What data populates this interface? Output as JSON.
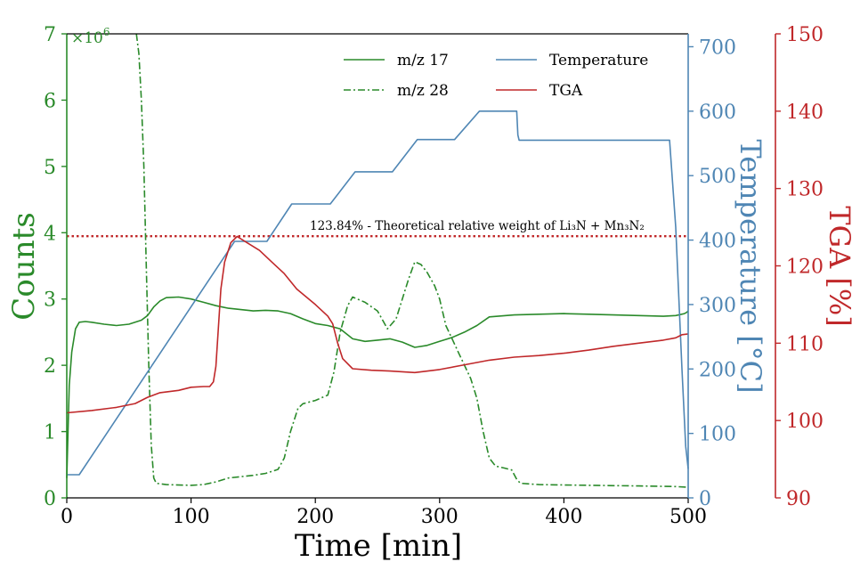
{
  "chart_data": {
    "type": "line",
    "xlabel": "Time [min]",
    "xlim": [
      0,
      500
    ],
    "x_ticks": [
      "0",
      "100",
      "200",
      "300",
      "400",
      "500"
    ],
    "left_axis": {
      "label": "Counts",
      "multiplier": "×10",
      "multiplier_exp": "6",
      "ylim": [
        0,
        7
      ],
      "ticks": [
        "0",
        "1",
        "2",
        "3",
        "4",
        "5",
        "6",
        "7"
      ],
      "color": "#2a8a2a"
    },
    "temp_axis": {
      "label": "Temperature [°C]",
      "ylim": [
        0,
        720
      ],
      "ticks": [
        "0",
        "100",
        "200",
        "300",
        "400",
        "500",
        "600",
        "700"
      ],
      "color": "#4f86b4"
    },
    "tga_axis": {
      "label": "TGA [%]",
      "ylim": [
        90,
        150
      ],
      "ticks": [
        "90",
        "100",
        "110",
        "120",
        "130",
        "140",
        "150"
      ],
      "color": "#c0282a"
    },
    "annotation": "123.84% - Theoretical relative weight of Li₃N + Mn₃N₂",
    "reference_line": {
      "axis": "tga",
      "value": 123.84,
      "style": "dotted",
      "color": "#c0282a"
    },
    "legend_position": "top-center",
    "series": [
      {
        "name": "m/z 17",
        "axis": "left",
        "color": "#2a8a2a",
        "style": "solid",
        "points": [
          [
            0,
            0.3
          ],
          [
            1,
            1.0
          ],
          [
            2,
            1.7
          ],
          [
            4,
            2.2
          ],
          [
            7,
            2.55
          ],
          [
            10,
            2.65
          ],
          [
            15,
            2.66
          ],
          [
            20,
            2.65
          ],
          [
            30,
            2.62
          ],
          [
            40,
            2.6
          ],
          [
            50,
            2.62
          ],
          [
            60,
            2.68
          ],
          [
            65,
            2.75
          ],
          [
            70,
            2.88
          ],
          [
            75,
            2.97
          ],
          [
            80,
            3.02
          ],
          [
            90,
            3.03
          ],
          [
            100,
            3.0
          ],
          [
            110,
            2.95
          ],
          [
            120,
            2.9
          ],
          [
            130,
            2.86
          ],
          [
            140,
            2.84
          ],
          [
            150,
            2.82
          ],
          [
            160,
            2.83
          ],
          [
            170,
            2.82
          ],
          [
            180,
            2.78
          ],
          [
            190,
            2.7
          ],
          [
            200,
            2.63
          ],
          [
            210,
            2.6
          ],
          [
            220,
            2.55
          ],
          [
            230,
            2.4
          ],
          [
            240,
            2.36
          ],
          [
            250,
            2.38
          ],
          [
            260,
            2.4
          ],
          [
            270,
            2.35
          ],
          [
            280,
            2.27
          ],
          [
            290,
            2.3
          ],
          [
            300,
            2.36
          ],
          [
            310,
            2.42
          ],
          [
            320,
            2.5
          ],
          [
            330,
            2.6
          ],
          [
            340,
            2.73
          ],
          [
            360,
            2.76
          ],
          [
            380,
            2.77
          ],
          [
            400,
            2.78
          ],
          [
            420,
            2.77
          ],
          [
            440,
            2.76
          ],
          [
            460,
            2.75
          ],
          [
            480,
            2.74
          ],
          [
            490,
            2.75
          ],
          [
            497,
            2.78
          ],
          [
            499,
            2.8
          ],
          [
            500,
            2.82
          ]
        ]
      },
      {
        "name": "m/z 28",
        "axis": "left",
        "color": "#2a8a2a",
        "style": "dashdot",
        "points": [
          [
            56,
            7.0
          ],
          [
            58,
            6.7
          ],
          [
            60,
            6.0
          ],
          [
            62,
            5.0
          ],
          [
            64,
            3.5
          ],
          [
            66,
            2.0
          ],
          [
            68,
            0.8
          ],
          [
            70,
            0.3
          ],
          [
            72,
            0.22
          ],
          [
            80,
            0.2
          ],
          [
            100,
            0.19
          ],
          [
            110,
            0.2
          ],
          [
            120,
            0.24
          ],
          [
            130,
            0.3
          ],
          [
            140,
            0.32
          ],
          [
            150,
            0.34
          ],
          [
            160,
            0.37
          ],
          [
            170,
            0.43
          ],
          [
            175,
            0.6
          ],
          [
            180,
            1.0
          ],
          [
            186,
            1.35
          ],
          [
            190,
            1.42
          ],
          [
            200,
            1.47
          ],
          [
            210,
            1.55
          ],
          [
            215,
            1.9
          ],
          [
            220,
            2.5
          ],
          [
            226,
            2.9
          ],
          [
            230,
            3.03
          ],
          [
            240,
            2.95
          ],
          [
            250,
            2.82
          ],
          [
            258,
            2.55
          ],
          [
            265,
            2.7
          ],
          [
            270,
            3.0
          ],
          [
            275,
            3.3
          ],
          [
            280,
            3.56
          ],
          [
            285,
            3.52
          ],
          [
            290,
            3.4
          ],
          [
            296,
            3.2
          ],
          [
            300,
            3.0
          ],
          [
            305,
            2.6
          ],
          [
            310,
            2.4
          ],
          [
            315,
            2.2
          ],
          [
            320,
            2.0
          ],
          [
            325,
            1.8
          ],
          [
            330,
            1.5
          ],
          [
            335,
            1.0
          ],
          [
            340,
            0.6
          ],
          [
            345,
            0.48
          ],
          [
            352,
            0.45
          ],
          [
            358,
            0.42
          ],
          [
            362,
            0.28
          ],
          [
            365,
            0.22
          ],
          [
            380,
            0.2
          ],
          [
            420,
            0.19
          ],
          [
            460,
            0.18
          ],
          [
            490,
            0.17
          ],
          [
            500,
            0.16
          ]
        ]
      },
      {
        "name": "Temperature",
        "axis": "temp",
        "color": "#4f86b4",
        "style": "solid",
        "points": [
          [
            0,
            36
          ],
          [
            10,
            36
          ],
          [
            135,
            398
          ],
          [
            161,
            398
          ],
          [
            181,
            456
          ],
          [
            212,
            456
          ],
          [
            232,
            506
          ],
          [
            262,
            506
          ],
          [
            282,
            556
          ],
          [
            312,
            556
          ],
          [
            332,
            600
          ],
          [
            362,
            600
          ],
          [
            363,
            563
          ],
          [
            364,
            555
          ],
          [
            485,
            555
          ],
          [
            490,
            420
          ],
          [
            495,
            200
          ],
          [
            498,
            80
          ],
          [
            500,
            45
          ]
        ]
      },
      {
        "name": "TGA",
        "axis": "tga",
        "color": "#c0282a",
        "style": "solid",
        "points": [
          [
            0,
            101
          ],
          [
            20,
            101.3
          ],
          [
            40,
            101.7
          ],
          [
            55,
            102.2
          ],
          [
            65,
            103
          ],
          [
            75,
            103.6
          ],
          [
            90,
            103.9
          ],
          [
            100,
            104.3
          ],
          [
            110,
            104.4
          ],
          [
            115,
            104.4
          ],
          [
            118,
            105
          ],
          [
            120,
            107
          ],
          [
            122,
            112
          ],
          [
            124,
            117
          ],
          [
            127,
            120.5
          ],
          [
            132,
            123
          ],
          [
            137,
            123.8
          ],
          [
            145,
            123
          ],
          [
            155,
            122
          ],
          [
            165,
            120.5
          ],
          [
            175,
            119
          ],
          [
            185,
            117
          ],
          [
            200,
            115
          ],
          [
            210,
            113.5
          ],
          [
            214,
            112.5
          ],
          [
            218,
            110
          ],
          [
            222,
            108
          ],
          [
            230,
            106.7
          ],
          [
            245,
            106.5
          ],
          [
            260,
            106.4
          ],
          [
            280,
            106.2
          ],
          [
            300,
            106.6
          ],
          [
            320,
            107.2
          ],
          [
            340,
            107.8
          ],
          [
            360,
            108.2
          ],
          [
            380,
            108.4
          ],
          [
            400,
            108.7
          ],
          [
            420,
            109.1
          ],
          [
            440,
            109.6
          ],
          [
            460,
            110
          ],
          [
            480,
            110.4
          ],
          [
            490,
            110.7
          ],
          [
            495,
            111.1
          ],
          [
            500,
            111.2
          ]
        ]
      }
    ]
  }
}
